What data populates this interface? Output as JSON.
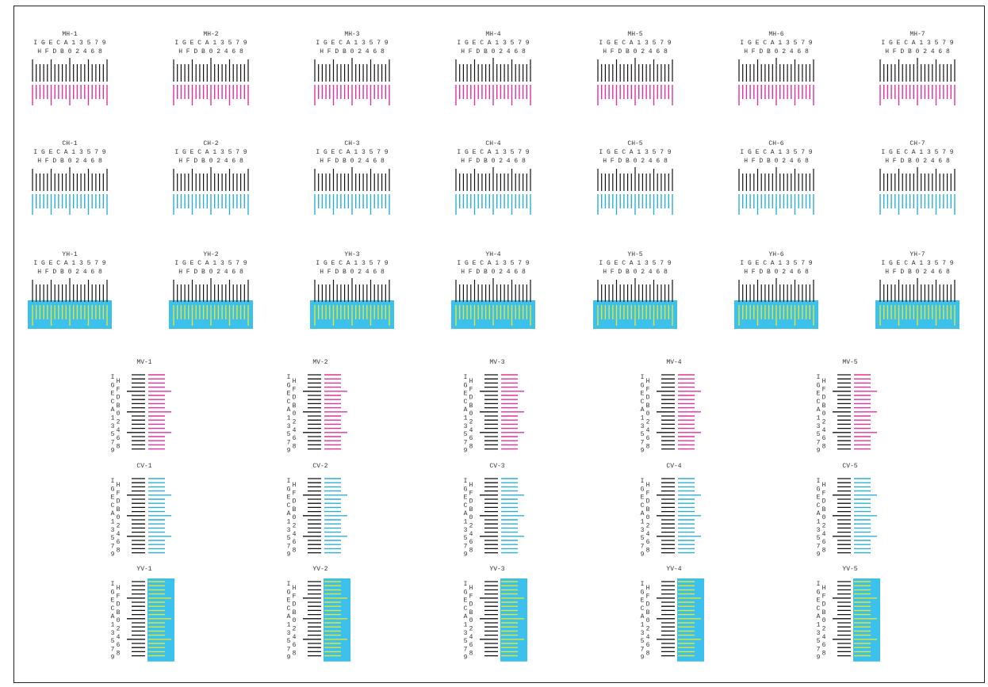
{
  "colors": {
    "black": "#111111",
    "magenta": "#e0309c",
    "cyan": "#2aaed8",
    "yellow": "#e9e52a",
    "yellow_bg": "#3cc0ec",
    "frame": "#222222"
  },
  "horizontal_scale_labels": {
    "top": "I G E C A 1 3 5 7 9",
    "bottom": "H F D B 0 2 4 6 8"
  },
  "vertical_scale_labels": {
    "left_column": [
      "I",
      "G",
      "E",
      "C",
      "A",
      "1",
      "3",
      "5",
      "7",
      "9"
    ],
    "right_column": [
      "H",
      "F",
      "D",
      "B",
      "0",
      "2",
      "4",
      "6",
      "8"
    ]
  },
  "horizontal_rows": [
    {
      "color": "magenta",
      "titles": [
        "MH-1",
        "MH-2",
        "MH-3",
        "MH-4",
        "MH-5",
        "MH-6",
        "MH-7"
      ]
    },
    {
      "color": "cyan",
      "titles": [
        "CH-1",
        "CH-2",
        "CH-3",
        "CH-4",
        "CH-5",
        "CH-6",
        "CH-7"
      ]
    },
    {
      "color": "yellow",
      "titles": [
        "YH-1",
        "YH-2",
        "YH-3",
        "YH-4",
        "YH-5",
        "YH-6",
        "YH-7"
      ]
    }
  ],
  "vertical_rows": [
    {
      "color": "magenta",
      "titles": [
        "MV-1",
        "MV-2",
        "MV-3",
        "MV-4",
        "MV-5"
      ]
    },
    {
      "color": "cyan",
      "titles": [
        "CV-1",
        "CV-2",
        "CV-3",
        "CV-4",
        "CV-5"
      ]
    },
    {
      "color": "yellow",
      "titles": [
        "YV-1",
        "YV-2",
        "YV-3",
        "YV-4",
        "YV-5"
      ]
    }
  ]
}
